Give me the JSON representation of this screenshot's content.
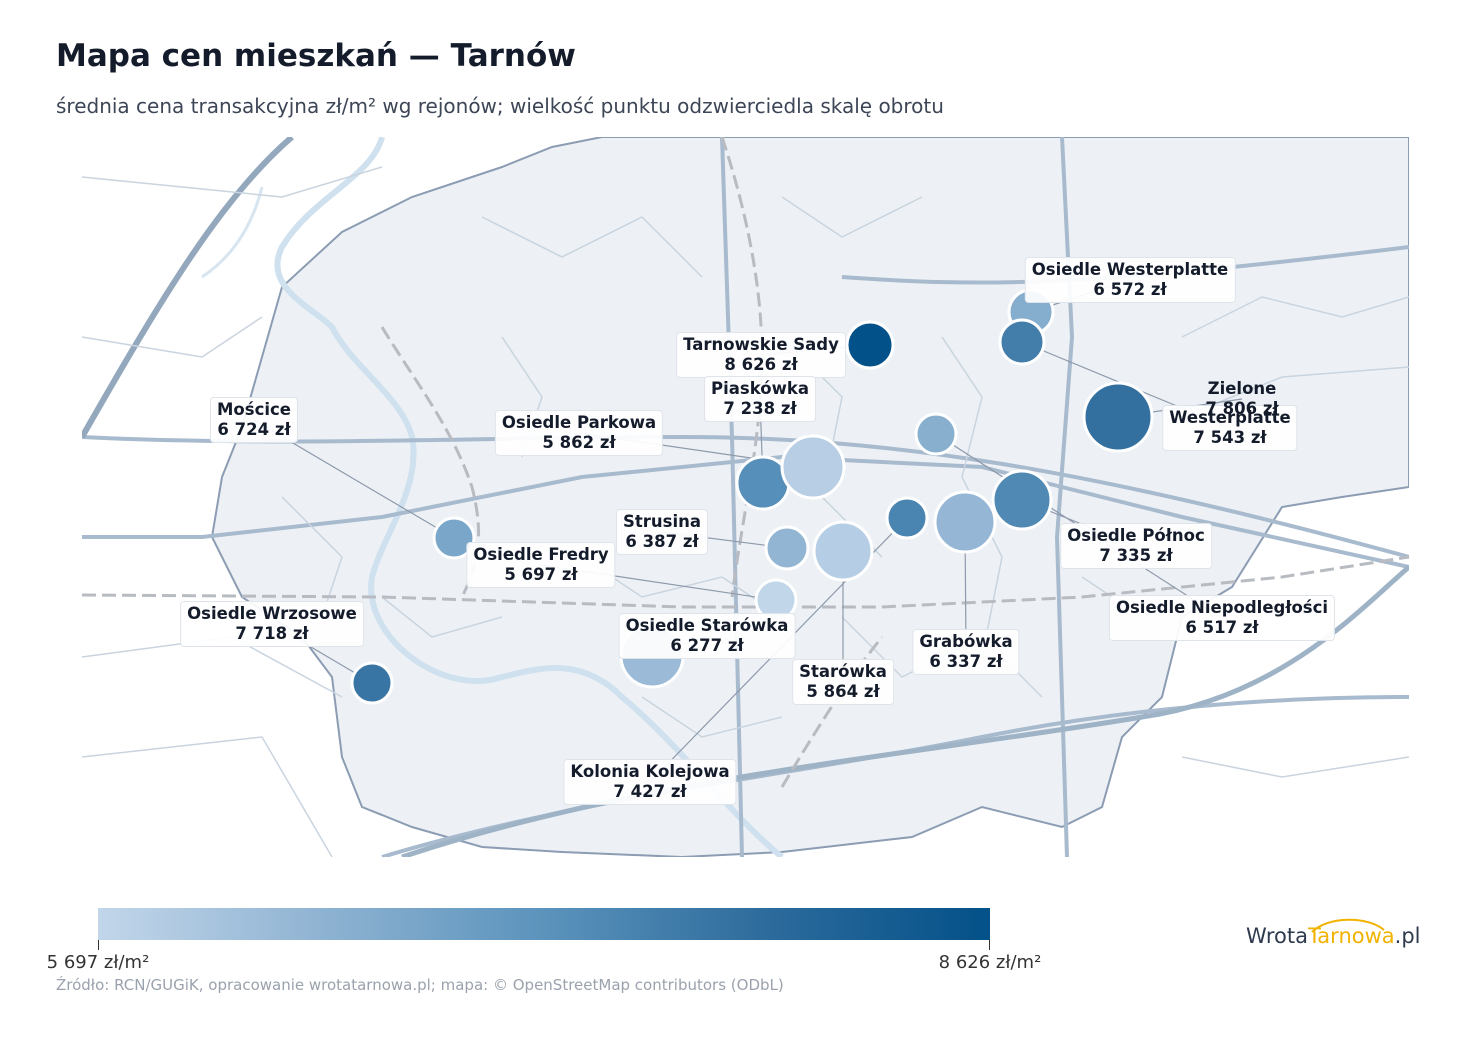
{
  "title": "Mapa cen mieszkań — Tarnów",
  "subtitle": "średnia cena transakcyjna zł/m² wg rejonów; wielkość punktu odzwierciedla skalę obrotu",
  "colors": {
    "min": "#c2d6ea",
    "max": "#035189",
    "city_fill": "#edf1f5",
    "roads": "#b9c7d6",
    "rail": "#b8bcc2",
    "river": "#cfe0ee"
  },
  "map_data": {
    "unit": "zł/m²",
    "districts": [
      {
        "name": "Osiedle Westerplatte",
        "price": "6 572 zł",
        "value": 6572
      },
      {
        "name": "Tarnowskie Sady",
        "price": "8 626 zł",
        "value": 8626
      },
      {
        "name": "Piaskówka",
        "price": "7 238 zł",
        "value": 7238
      },
      {
        "name": "Zielone",
        "price": "7 806 zł",
        "value": 7806
      },
      {
        "name": "Westerplatte",
        "price": "7 543 zł",
        "value": 7543
      },
      {
        "name": "Mościce",
        "price": "6 724 zł",
        "value": 6724
      },
      {
        "name": "Osiedle Parkowa",
        "price": "5 862 zł",
        "value": 5862
      },
      {
        "name": "Strusina",
        "price": "6 387 zł",
        "value": 6387
      },
      {
        "name": "Osiedle Fredry",
        "price": "5 697 zł",
        "value": 5697
      },
      {
        "name": "Osiedle Północ",
        "price": "7 335 zł",
        "value": 7335
      },
      {
        "name": "Osiedle Wrzosowe",
        "price": "7 718 zł",
        "value": 7718
      },
      {
        "name": "Osiedle Niepodległości",
        "price": "6 517 zł",
        "value": 6517
      },
      {
        "name": "Osiedle Starówka",
        "price": "6 277 zł",
        "value": 6277
      },
      {
        "name": "Grabówka",
        "price": "6 337 zł",
        "value": 6337
      },
      {
        "name": "Starówka",
        "price": "5 864 zł",
        "value": 5864
      },
      {
        "name": "Kolonia Kolejowa",
        "price": "7 427 zł",
        "value": 7427
      }
    ]
  },
  "colorbar": {
    "min_label": "5 697 zł/m²",
    "max_label": "8 626 zł/m²",
    "min": 5697,
    "max": 8626
  },
  "source": "Źródło: RCN/GUGiK, opracowanie wrotatarnowa.pl; mapa: © OpenStreetMap contributors (ODbL)",
  "logo": {
    "part1": "Wrota",
    "part2": "Tarnowa",
    "part3": ".pl"
  }
}
